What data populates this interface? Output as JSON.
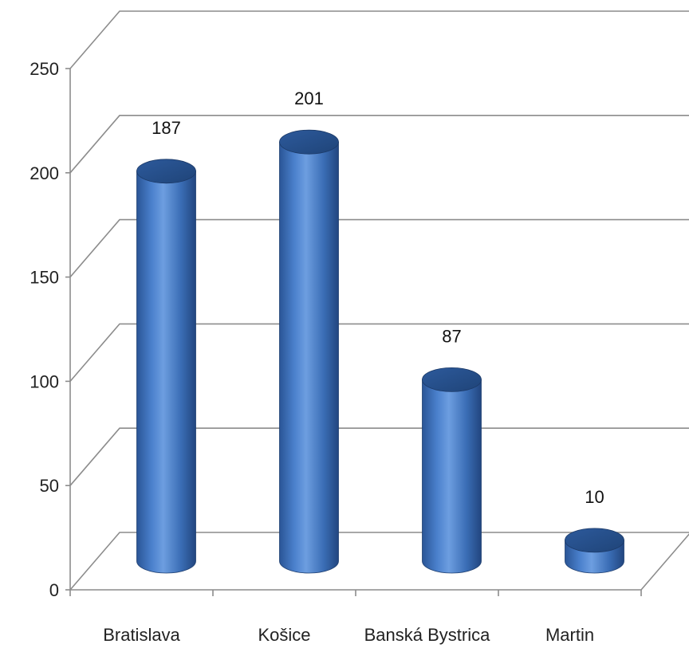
{
  "chart_data": {
    "type": "bar",
    "style": "3d-cylinder",
    "categories": [
      "Bratislava",
      "Košice",
      "Banská Bystrica",
      "Martin"
    ],
    "values": [
      187,
      201,
      87,
      10
    ],
    "data_labels": [
      "187",
      "201",
      "87",
      "10"
    ],
    "ylim": [
      0,
      250
    ],
    "yticks": [
      0,
      50,
      100,
      150,
      200,
      250
    ],
    "ytick_labels": [
      "0",
      "50",
      "100",
      "150",
      "200",
      "250"
    ],
    "grid": true,
    "legend": "none",
    "bar_color": "#3d6eb8"
  }
}
